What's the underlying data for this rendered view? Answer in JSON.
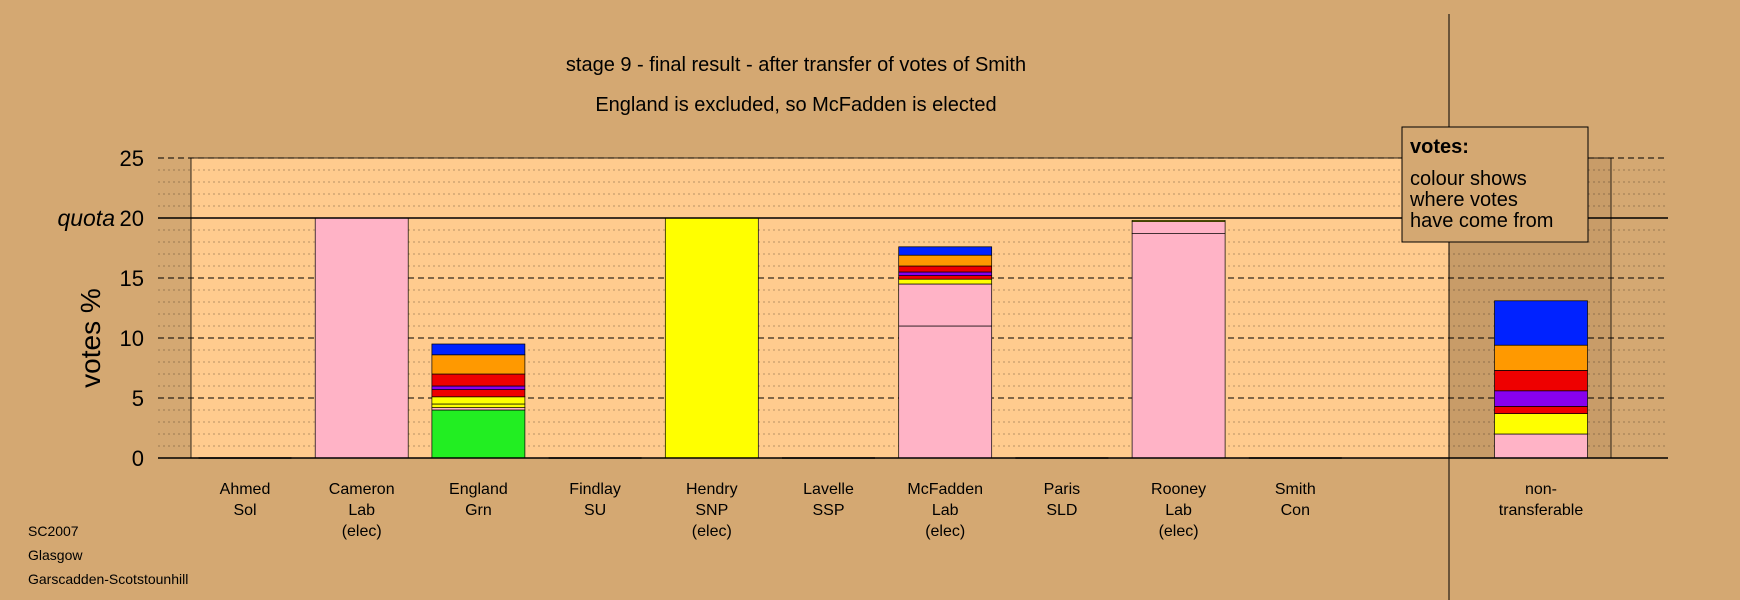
{
  "chart_data": {
    "type": "bar",
    "stacked": true,
    "title": "stage 9 - final result - after transfer of votes of Smith",
    "subtitle": "England is excluded, so McFadden is elected",
    "ylabel": "votes %",
    "ylim": [
      0,
      25
    ],
    "yticks": [
      "0",
      "5",
      "10",
      "15",
      "20",
      "25"
    ],
    "quota": 20,
    "quota_label": "quota",
    "grid": true,
    "legend": {
      "title": "votes:",
      "lines": [
        "colour shows",
        "where votes",
        "have come from"
      ],
      "placement": "top-right"
    },
    "candidates": [
      {
        "lines": [
          "Ahmed",
          "Sol"
        ],
        "segments": []
      },
      {
        "lines": [
          "Cameron",
          "Lab",
          "(elec)"
        ],
        "segments": [
          {
            "color": "#FFB3C6",
            "value": 20.0
          }
        ]
      },
      {
        "lines": [
          "England",
          "Grn"
        ],
        "segments": [
          {
            "color": "#22EE22",
            "value": 4.0
          },
          {
            "color": "#FFB3C6",
            "value": 0.2
          },
          {
            "color": "#FFFF00",
            "value": 0.3
          },
          {
            "color": "#FFFF00",
            "value": 0.6
          },
          {
            "color": "#EE0000",
            "value": 0.6
          },
          {
            "color": "#8800EE",
            "value": 0.3
          },
          {
            "color": "#EE0000",
            "value": 1.0
          },
          {
            "color": "#FF9900",
            "value": 1.6
          },
          {
            "color": "#0022FF",
            "value": 0.9
          }
        ]
      },
      {
        "lines": [
          "Findlay",
          "SU"
        ],
        "segments": []
      },
      {
        "lines": [
          "Hendry",
          "SNP",
          "(elec)"
        ],
        "segments": [
          {
            "color": "#FFFF00",
            "value": 20.0
          }
        ]
      },
      {
        "lines": [
          "Lavelle",
          "SSP"
        ],
        "segments": []
      },
      {
        "lines": [
          "McFadden",
          "Lab",
          "(elec)"
        ],
        "segments": [
          {
            "color": "#FFB3C6",
            "value": 11.0
          },
          {
            "color": "#FFB3C6",
            "value": 3.5
          },
          {
            "color": "#FFFF00",
            "value": 0.4
          },
          {
            "color": "#EE0000",
            "value": 0.3
          },
          {
            "color": "#8800EE",
            "value": 0.3
          },
          {
            "color": "#EE0000",
            "value": 0.5
          },
          {
            "color": "#FF9900",
            "value": 0.9
          },
          {
            "color": "#0022FF",
            "value": 0.7
          }
        ]
      },
      {
        "lines": [
          "Paris",
          "SLD"
        ],
        "segments": []
      },
      {
        "lines": [
          "Rooney",
          "Lab",
          "(elec)"
        ],
        "segments": [
          {
            "color": "#FFB3C6",
            "value": 18.7
          },
          {
            "color": "#FFB3C6",
            "value": 1.0
          },
          {
            "color": "#FFFF00",
            "value": 0.1
          }
        ]
      },
      {
        "lines": [
          "Smith",
          "Con"
        ],
        "segments": []
      }
    ],
    "non_transferable": {
      "lines": [
        "non-",
        "transferable"
      ],
      "segments": [
        {
          "color": "#FFB3C6",
          "value": 2.0
        },
        {
          "color": "#FFFF00",
          "value": 1.7
        },
        {
          "color": "#EE0000",
          "value": 0.6
        },
        {
          "color": "#8800EE",
          "value": 1.3
        },
        {
          "color": "#EE0000",
          "value": 1.7
        },
        {
          "color": "#FF9900",
          "value": 2.1
        },
        {
          "color": "#0022FF",
          "value": 3.7
        }
      ]
    },
    "colors": {
      "background": "#D4A872",
      "plot_area": "#FFCB8E",
      "outside_area": "#C89C68"
    }
  },
  "footer": {
    "lines": [
      "SC2007",
      "Glasgow",
      "Garscadden-Scotstounhill"
    ]
  }
}
